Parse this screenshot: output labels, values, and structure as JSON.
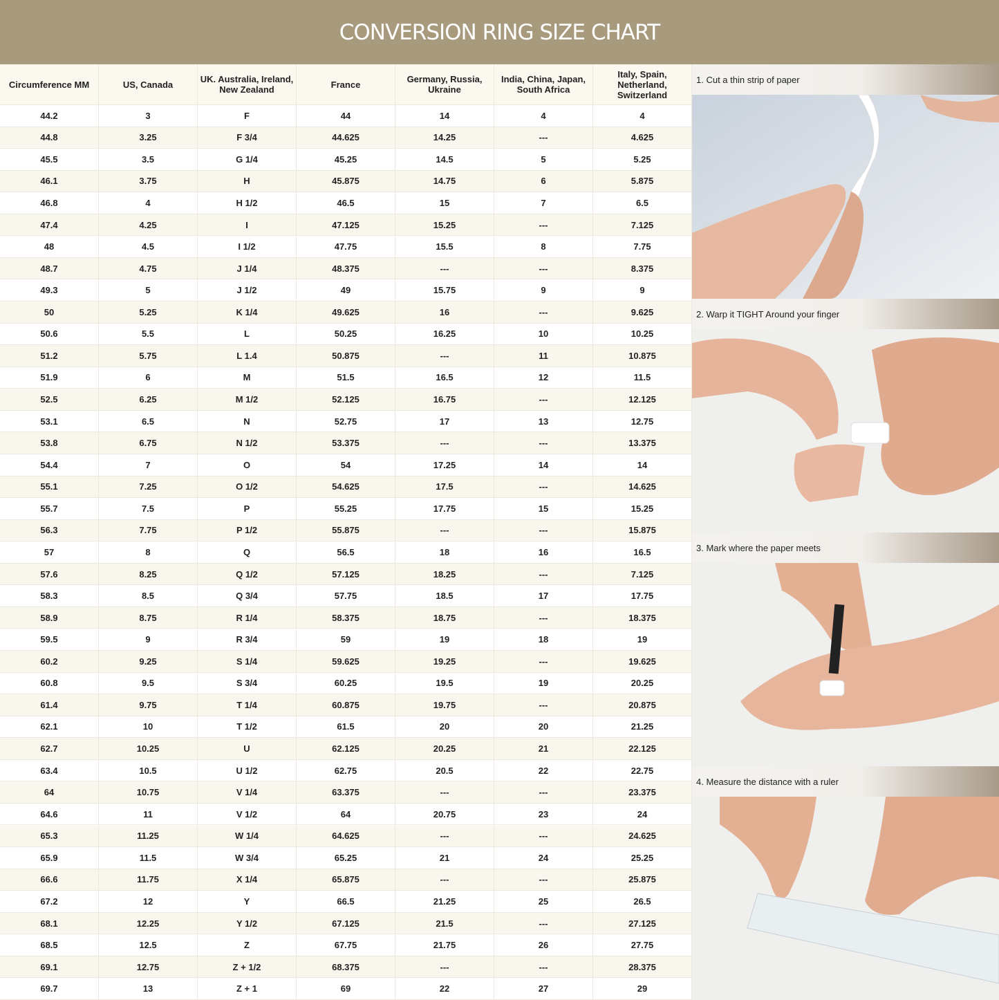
{
  "header": {
    "title": "CONVERSION RING SIZE CHART"
  },
  "table": {
    "columns": [
      "Circumference MM",
      "US, Canada",
      "UK. Australia, Ireland, New Zealand",
      "France",
      "Germany, Russia, Ukraine",
      "India, China, Japan, South Africa",
      "Italy, Spain, Netherland, Switzerland"
    ],
    "rows": [
      [
        "44.2",
        "3",
        "F",
        "44",
        "14",
        "4",
        "4"
      ],
      [
        "44.8",
        "3.25",
        "F 3/4",
        "44.625",
        "14.25",
        "---",
        "4.625"
      ],
      [
        "45.5",
        "3.5",
        "G 1/4",
        "45.25",
        "14.5",
        "5",
        "5.25"
      ],
      [
        "46.1",
        "3.75",
        "H",
        "45.875",
        "14.75",
        "6",
        "5.875"
      ],
      [
        "46.8",
        "4",
        "H 1/2",
        "46.5",
        "15",
        "7",
        "6.5"
      ],
      [
        "47.4",
        "4.25",
        "I",
        "47.125",
        "15.25",
        "---",
        "7.125"
      ],
      [
        "48",
        "4.5",
        "I 1/2",
        "47.75",
        "15.5",
        "8",
        "7.75"
      ],
      [
        "48.7",
        "4.75",
        "J 1/4",
        "48.375",
        "---",
        "---",
        "8.375"
      ],
      [
        "49.3",
        "5",
        "J 1/2",
        "49",
        "15.75",
        "9",
        "9"
      ],
      [
        "50",
        "5.25",
        "K 1/4",
        "49.625",
        "16",
        "---",
        "9.625"
      ],
      [
        "50.6",
        "5.5",
        "L",
        "50.25",
        "16.25",
        "10",
        "10.25"
      ],
      [
        "51.2",
        "5.75",
        "L 1.4",
        "50.875",
        "---",
        "11",
        "10.875"
      ],
      [
        "51.9",
        "6",
        "M",
        "51.5",
        "16.5",
        "12",
        "11.5"
      ],
      [
        "52.5",
        "6.25",
        "M 1/2",
        "52.125",
        "16.75",
        "---",
        "12.125"
      ],
      [
        "53.1",
        "6.5",
        "N",
        "52.75",
        "17",
        "13",
        "12.75"
      ],
      [
        "53.8",
        "6.75",
        "N 1/2",
        "53.375",
        "---",
        "---",
        "13.375"
      ],
      [
        "54.4",
        "7",
        "O",
        "54",
        "17.25",
        "14",
        "14"
      ],
      [
        "55.1",
        "7.25",
        "O 1/2",
        "54.625",
        "17.5",
        "---",
        "14.625"
      ],
      [
        "55.7",
        "7.5",
        "P",
        "55.25",
        "17.75",
        "15",
        "15.25"
      ],
      [
        "56.3",
        "7.75",
        "P 1/2",
        "55.875",
        "---",
        "---",
        "15.875"
      ],
      [
        "57",
        "8",
        "Q",
        "56.5",
        "18",
        "16",
        "16.5"
      ],
      [
        "57.6",
        "8.25",
        "Q 1/2",
        "57.125",
        "18.25",
        "---",
        "7.125"
      ],
      [
        "58.3",
        "8.5",
        "Q 3/4",
        "57.75",
        "18.5",
        "17",
        "17.75"
      ],
      [
        "58.9",
        "8.75",
        "R 1/4",
        "58.375",
        "18.75",
        "---",
        "18.375"
      ],
      [
        "59.5",
        "9",
        "R 3/4",
        "59",
        "19",
        "18",
        "19"
      ],
      [
        "60.2",
        "9.25",
        "S 1/4",
        "59.625",
        "19.25",
        "---",
        "19.625"
      ],
      [
        "60.8",
        "9.5",
        "S 3/4",
        "60.25",
        "19.5",
        "19",
        "20.25"
      ],
      [
        "61.4",
        "9.75",
        "T 1/4",
        "60.875",
        "19.75",
        "---",
        "20.875"
      ],
      [
        "62.1",
        "10",
        "T 1/2",
        "61.5",
        "20",
        "20",
        "21.25"
      ],
      [
        "62.7",
        "10.25",
        "U",
        "62.125",
        "20.25",
        "21",
        "22.125"
      ],
      [
        "63.4",
        "10.5",
        "U 1/2",
        "62.75",
        "20.5",
        "22",
        "22.75"
      ],
      [
        "64",
        "10.75",
        "V 1/4",
        "63.375",
        "---",
        "---",
        "23.375"
      ],
      [
        "64.6",
        "11",
        "V 1/2",
        "64",
        "20.75",
        "23",
        "24"
      ],
      [
        "65.3",
        "11.25",
        "W 1/4",
        "64.625",
        "---",
        "---",
        "24.625"
      ],
      [
        "65.9",
        "11.5",
        "W 3/4",
        "65.25",
        "21",
        "24",
        "25.25"
      ],
      [
        "66.6",
        "11.75",
        "X 1/4",
        "65.875",
        "---",
        "---",
        "25.875"
      ],
      [
        "67.2",
        "12",
        "Y",
        "66.5",
        "21.25",
        "25",
        "26.5"
      ],
      [
        "68.1",
        "12.25",
        "Y 1/2",
        "67.125",
        "21.5",
        "---",
        "27.125"
      ],
      [
        "68.5",
        "12.5",
        "Z",
        "67.75",
        "21.75",
        "26",
        "27.75"
      ],
      [
        "69.1",
        "12.75",
        "Z + 1/2",
        "68.375",
        "---",
        "---",
        "28.375"
      ],
      [
        "69.7",
        "13",
        "Z + 1",
        "69",
        "22",
        "27",
        "29"
      ]
    ]
  },
  "steps": [
    "1. Cut a thin strip of paper",
    "2. Warp it TIGHT Around your finger",
    "3. Mark where the paper meets",
    "4. Measure the distance with a ruler"
  ]
}
